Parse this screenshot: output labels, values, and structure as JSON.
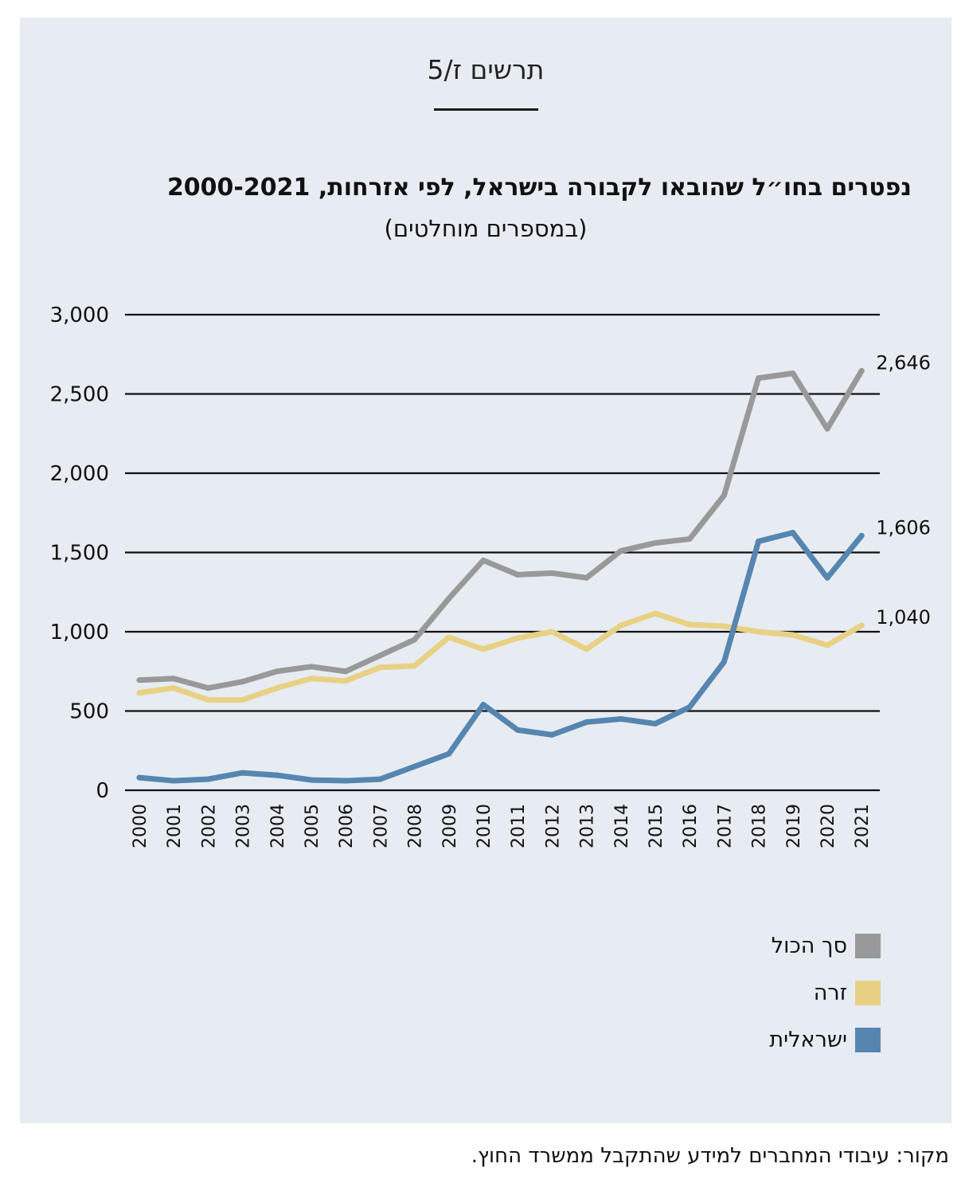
{
  "figure_label": "תרשים ז/5",
  "source_note": "מקור: עיבודי המחברים למידע שהתקבל ממשרד החוץ.",
  "chart_data": {
    "type": "line",
    "title": "נפטרים בחו״ל שהובאו לקבורה בישראל, לפי אזרחות, 2000-2021",
    "subtitle": "(במספרים מוחלטים)",
    "xlabel": "",
    "ylabel": "",
    "x": [
      "2000",
      "2001",
      "2002",
      "2003",
      "2004",
      "2005",
      "2006",
      "2007",
      "2008",
      "2009",
      "2010",
      "2011",
      "2012",
      "2013",
      "2014",
      "2015",
      "2016",
      "2017",
      "2018",
      "2019",
      "2020",
      "2021"
    ],
    "ylim": [
      0,
      3000
    ],
    "yticks": [
      0,
      500,
      1000,
      1500,
      2000,
      2500,
      3000
    ],
    "ytick_labels": [
      "0",
      "500",
      "1,000",
      "1,500",
      "2,000",
      "2,500",
      "3,000"
    ],
    "grid": "horizontal",
    "legend_position": "bottom-right",
    "series": [
      {
        "name": "סך הכול",
        "color": "#999999",
        "values": [
          695,
          705,
          645,
          685,
          750,
          780,
          750,
          850,
          950,
          1210,
          1450,
          1360,
          1370,
          1340,
          1510,
          1560,
          1585,
          1860,
          2600,
          2630,
          2280,
          2646
        ],
        "end_label": "2,646"
      },
      {
        "name": "זרה",
        "color": "#e8d185",
        "values": [
          615,
          645,
          570,
          570,
          645,
          705,
          690,
          775,
          785,
          965,
          890,
          960,
          1000,
          890,
          1040,
          1115,
          1045,
          1035,
          1000,
          980,
          915,
          1040
        ],
        "end_label": "1,040"
      },
      {
        "name": "ישראלית",
        "color": "#5686b0",
        "values": [
          80,
          60,
          70,
          110,
          95,
          65,
          60,
          70,
          150,
          230,
          540,
          380,
          350,
          430,
          450,
          420,
          525,
          810,
          1570,
          1625,
          1340,
          1606
        ],
        "end_label": "1,606"
      }
    ]
  }
}
